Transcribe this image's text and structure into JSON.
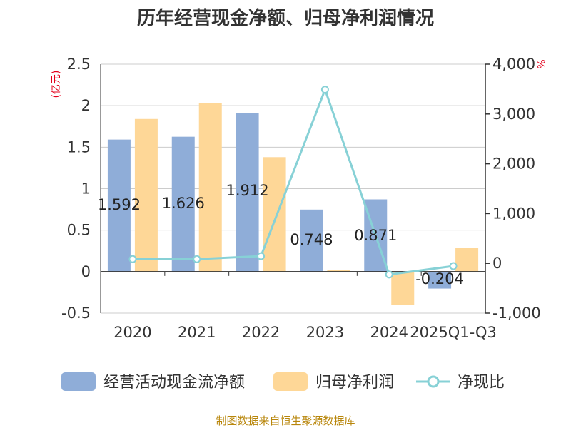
{
  "title": "历年经营现金净额、归母净利润情况",
  "source": "制图数据来自恒生聚源数据库",
  "colors": {
    "cash": "#8fadd8",
    "profit": "#fed797",
    "ratio": "#87d1d6",
    "unit": "#e3001b",
    "source": "#b8860b",
    "grid": "#cccccc",
    "axis": "#333333"
  },
  "chart_data": {
    "type": "bar",
    "title": "历年经营现金净额、归母净利润情况",
    "categories": [
      "2020",
      "2021",
      "2022",
      "2023",
      "2024",
      "2025Q1-Q3"
    ],
    "left_axis": {
      "unit": "(亿元)",
      "ylim": [
        -0.5,
        2.5
      ],
      "ticks": [
        "2.5",
        "2",
        "1.5",
        "1",
        "0.5",
        "0",
        "-0.5"
      ],
      "tick_values": [
        2.5,
        2,
        1.5,
        1,
        0.5,
        0,
        -0.5
      ]
    },
    "right_axis": {
      "unit": "%",
      "ylim": [
        -1000,
        4000
      ],
      "ticks": [
        "4,000",
        "3,000",
        "2,000",
        "1,000",
        "0",
        "-1,000"
      ],
      "tick_values": [
        4000,
        3000,
        2000,
        1000,
        0,
        -1000
      ]
    },
    "grid": true,
    "legend_position": "bottom",
    "series": [
      {
        "name": "经营活动现金流净额",
        "type": "bar",
        "axis": "left",
        "values": [
          1.592,
          1.626,
          1.912,
          0.748,
          0.871,
          -0.204
        ],
        "labels": [
          "1.592",
          "1.626",
          "1.912",
          "0.748",
          "0.871",
          "-0.204"
        ]
      },
      {
        "name": "归母净利润",
        "type": "bar",
        "axis": "left",
        "values": [
          1.84,
          2.03,
          1.38,
          0.02,
          -0.4,
          0.29
        ]
      },
      {
        "name": "净现比",
        "type": "line",
        "axis": "right",
        "values": [
          85,
          85,
          145,
          3490,
          -225,
          -55
        ]
      }
    ]
  }
}
